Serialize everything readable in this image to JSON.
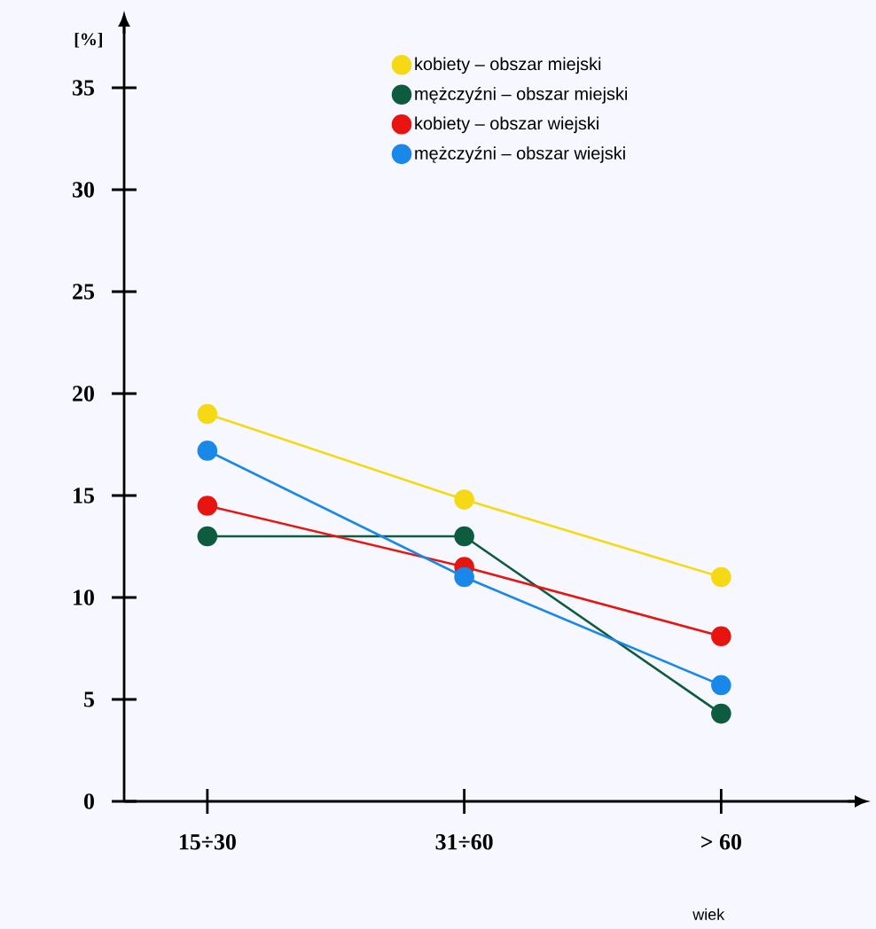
{
  "chart_data": {
    "type": "line",
    "ylabel": "[%]",
    "xlabel": "wiek",
    "categories": [
      "15÷30",
      "31÷60",
      "> 60"
    ],
    "ylim": [
      0,
      38
    ],
    "yticks": [
      0,
      5,
      10,
      15,
      20,
      25,
      30,
      35
    ],
    "legend": "top",
    "marker": "circle",
    "grid": false,
    "series": [
      {
        "name": "kobiety – obszar miejski",
        "color": "#f5d915",
        "values": [
          19,
          14.8,
          11
        ]
      },
      {
        "name": "mężczyźni – obszar miejski",
        "color": "#0e5c40",
        "values": [
          13,
          13,
          4.3
        ]
      },
      {
        "name": "kobiety – obszar wiejski",
        "color": "#e8140f",
        "values": [
          14.5,
          11.5,
          8.1
        ]
      },
      {
        "name": "mężczyźni – obszar wiejski",
        "color": "#1a88e8",
        "values": [
          17.2,
          11,
          5.7
        ]
      }
    ]
  }
}
